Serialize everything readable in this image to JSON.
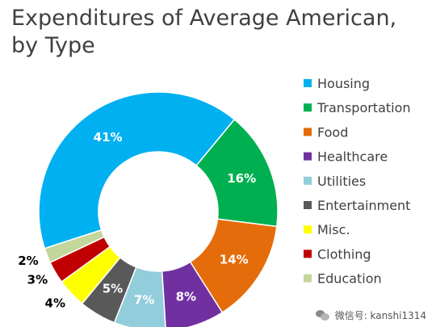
{
  "chart_data": {
    "type": "pie",
    "variant": "donut",
    "title_lines": [
      "Expenditures of Average American,",
      "by Type"
    ],
    "legend_position": "right",
    "slices": [
      {
        "label": "Housing",
        "value": 41,
        "display": "41%",
        "color": "#00b0f0",
        "label_color": "#ffffff"
      },
      {
        "label": "Transportation",
        "value": 16,
        "display": "16%",
        "color": "#00b050",
        "label_color": "#ffffff"
      },
      {
        "label": "Food",
        "value": 14,
        "display": "14%",
        "color": "#e46c0a",
        "label_color": "#ffffff"
      },
      {
        "label": "Healthcare",
        "value": 8,
        "display": "8%",
        "color": "#7030a0",
        "label_color": "#ffffff"
      },
      {
        "label": "Utilities",
        "value": 7,
        "display": "7%",
        "color": "#92cddc",
        "label_color": "#ffffff"
      },
      {
        "label": "Entertainment",
        "value": 5,
        "display": "5%",
        "color": "#595959",
        "label_color": "#ffffff"
      },
      {
        "label": "Misc.",
        "value": 4,
        "display": "4%",
        "color": "#ffff00",
        "label_color": "#000000"
      },
      {
        "label": "Clothing",
        "value": 3,
        "display": "3%",
        "color": "#c00000",
        "label_color": "#000000"
      },
      {
        "label": "Education",
        "value": 2,
        "display": "2%",
        "color": "#c3d69b",
        "label_color": "#000000"
      }
    ]
  },
  "watermark": {
    "text": "微信号: kanshi1314",
    "icon": "wechat-icon"
  }
}
